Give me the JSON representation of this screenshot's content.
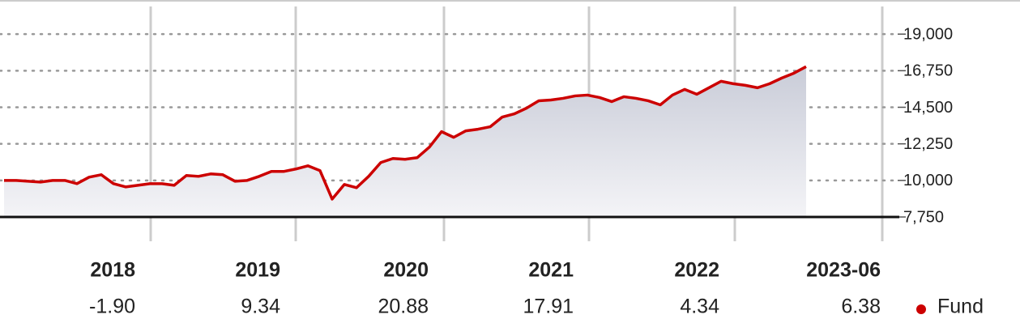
{
  "chart_data": {
    "type": "line",
    "series": [
      {
        "name": "Fund",
        "color": "#cc0000",
        "values": [
          10000,
          10000,
          9950,
          9900,
          10000,
          10000,
          9800,
          10200,
          10350,
          9800,
          9600,
          9700,
          9800,
          9800,
          9700,
          10300,
          10250,
          10400,
          10350,
          9950,
          10000,
          10250,
          10550,
          10550,
          10700,
          10900,
          10600,
          8850,
          9750,
          9550,
          10250,
          11100,
          11350,
          11300,
          11400,
          12050,
          13000,
          12650,
          13050,
          13150,
          13300,
          13900,
          14100,
          14450,
          14900,
          14950,
          15050,
          15200,
          15250,
          15100,
          14850,
          15150,
          15050,
          14900,
          14650,
          15250,
          15600,
          15300,
          15700,
          16100,
          15950,
          15850,
          15700,
          15950,
          16300,
          16600,
          17000
        ]
      }
    ],
    "ylim": [
      7750,
      21000
    ],
    "yticks": [
      {
        "value": 7750,
        "label": "7,750"
      },
      {
        "value": 10000,
        "label": "10,000"
      },
      {
        "value": 12250,
        "label": "12,250"
      },
      {
        "value": 14500,
        "label": "14,500"
      },
      {
        "value": 16750,
        "label": "16,750"
      },
      {
        "value": 19000,
        "label": "19,000"
      }
    ],
    "grid": true,
    "annual_returns": {
      "periods": [
        "2018",
        "2019",
        "2020",
        "2021",
        "2022",
        "2023-06"
      ],
      "values": [
        -1.9,
        9.34,
        20.88,
        17.91,
        4.34,
        6.38
      ],
      "value_labels": [
        "-1.90",
        "9.34",
        "20.88",
        "17.91",
        "4.34",
        "6.38"
      ]
    }
  }
}
